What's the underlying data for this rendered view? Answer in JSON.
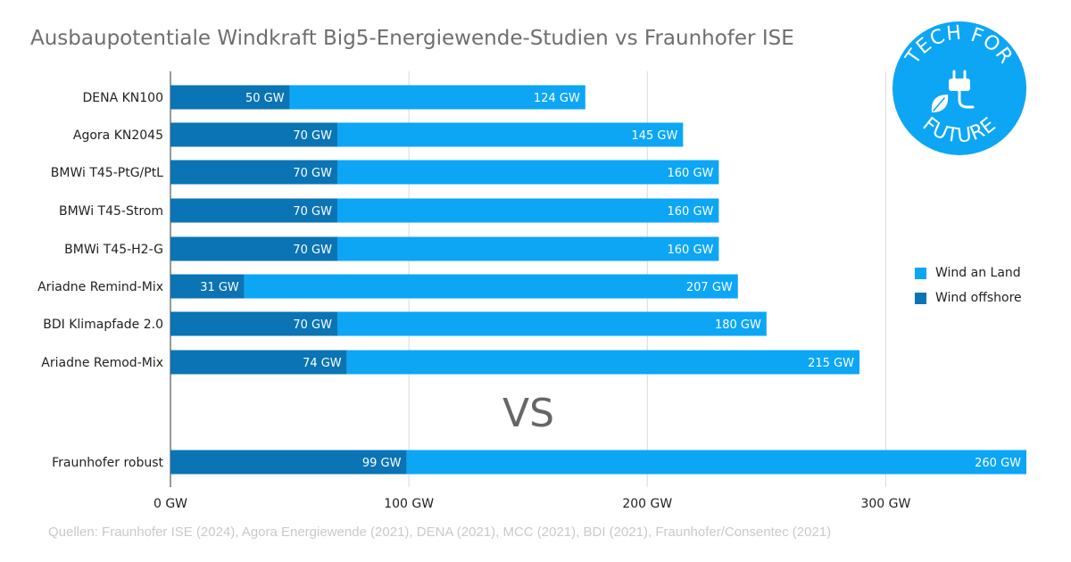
{
  "chart_data": {
    "type": "bar",
    "orientation": "horizontal",
    "stacked": true,
    "title": "Ausbaupotentiale Windkraft Big5-Energiewende-Studien vs Fraunhofer ISE",
    "categories": [
      "DENA KN100",
      "Agora KN2045",
      "BMWi T45-PtG/PtL",
      "BMWi T45-Strom",
      "BMWi T45-H2-G",
      "Ariadne Remind-Mix",
      "BDI Klimapfade 2.0",
      "Ariadne Remod-Mix",
      "Fraunhofer robust"
    ],
    "series": [
      {
        "name": "Wind offshore",
        "color": "#0a74b5",
        "values": [
          50,
          70,
          70,
          70,
          70,
          31,
          70,
          74,
          99
        ],
        "labels": [
          "50 GW",
          "70 GW",
          "70 GW",
          "70 GW",
          "70 GW",
          "31 GW",
          "70 GW",
          "74 GW",
          "99 GW"
        ]
      },
      {
        "name": "Wind an Land",
        "color": "#0ca6f5",
        "values": [
          124,
          145,
          160,
          160,
          160,
          207,
          180,
          215,
          260
        ],
        "labels": [
          "124 GW",
          "145 GW",
          "160 GW",
          "160 GW",
          "160 GW",
          "207 GW",
          "180 GW",
          "215 GW",
          "260 GW"
        ]
      }
    ],
    "xlim": [
      0,
      359
    ],
    "xticks": [
      0,
      100,
      200,
      300
    ],
    "xtick_labels": [
      "0 GW",
      "100 GW",
      "200 GW",
      "300 GW"
    ],
    "grid": true,
    "legend_position": "right",
    "legend_order": [
      "Wind an Land",
      "Wind offshore"
    ],
    "annotation": "VS"
  },
  "source": "Quellen: Fraunhofer ISE (2024), Agora Energiewende (2021), DENA (2021), MCC (2021), BDI (2021), Fraunhofer/Consentec (2021)",
  "logo": {
    "top_text": "TECH FOR",
    "bottom_text": "FUTURE",
    "color": "#0ca6f5",
    "icon": "plug-leaf-icon"
  }
}
